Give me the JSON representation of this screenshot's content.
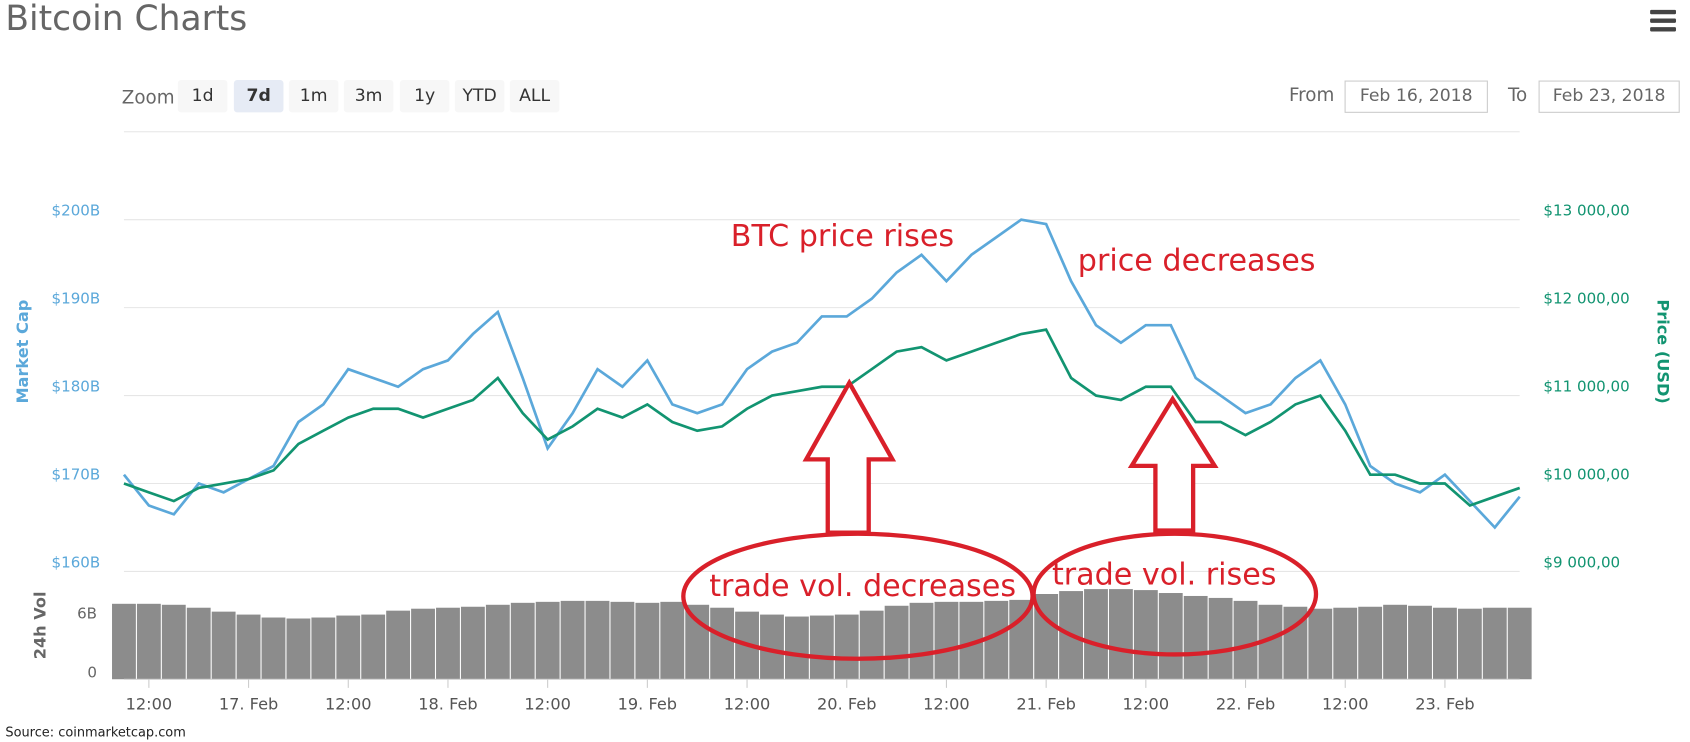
{
  "header": {
    "title": "Bitcoin Charts"
  },
  "controls": {
    "zoom_label": "Zoom",
    "zoom_options": [
      "1d",
      "7d",
      "1m",
      "3m",
      "1y",
      "YTD",
      "ALL"
    ],
    "from_label": "From",
    "from_value": "Feb 16, 2018",
    "to_label": "To",
    "to_value": "Feb 23, 2018"
  },
  "chart_data": [
    {
      "type": "line",
      "y_label": "Market Cap",
      "y2_label": "Price (USD)",
      "ylim": [
        160,
        210
      ],
      "yticks": [
        {
          "value": 160,
          "label": "$160B"
        },
        {
          "value": 170,
          "label": "$170B"
        },
        {
          "value": 180,
          "label": "$180B"
        },
        {
          "value": 190,
          "label": "$190B"
        },
        {
          "value": 200,
          "label": "$200B"
        }
      ],
      "y2lim": [
        9000,
        14000
      ],
      "y2ticks": [
        {
          "value": 9000,
          "label": "$9 000,00"
        },
        {
          "value": 10000,
          "label": "$10 000,00"
        },
        {
          "value": 11000,
          "label": "$11 000,00"
        },
        {
          "value": 12000,
          "label": "$12 000,00"
        },
        {
          "value": 13000,
          "label": "$13 000,00"
        }
      ],
      "grid": true,
      "series": [
        {
          "name": "Market Cap",
          "color": "#5ba8da",
          "values": [
            171,
            167.5,
            166.5,
            170,
            169,
            170.5,
            172,
            177,
            179,
            183,
            182,
            181,
            183,
            184,
            187,
            189.5,
            182,
            174,
            178,
            183,
            181,
            184,
            179,
            178,
            179,
            183,
            185,
            186,
            189,
            189,
            191,
            194,
            196,
            193,
            196,
            198,
            200,
            199.5,
            193,
            188,
            186,
            188,
            188,
            182,
            180,
            178,
            179,
            182,
            184,
            179,
            172,
            170,
            169,
            171,
            168,
            165,
            168.5
          ]
        },
        {
          "name": "Price (USD)",
          "color": "#129471",
          "axis": "y2",
          "values": [
            10000,
            9900,
            9800,
            9950,
            10000,
            10050,
            10150,
            10450,
            10600,
            10750,
            10850,
            10850,
            10750,
            10850,
            10950,
            11200,
            10800,
            10500,
            10650,
            10850,
            10750,
            10900,
            10700,
            10600,
            10650,
            10850,
            11000,
            11050,
            11100,
            11100,
            11300,
            11500,
            11550,
            11400,
            11500,
            11600,
            11700,
            11750,
            11200,
            11000,
            10950,
            11100,
            11100,
            10700,
            10700,
            10550,
            10700,
            10900,
            11000,
            10600,
            10100,
            10100,
            10000,
            10000,
            9750,
            9850,
            9950
          ]
        }
      ],
      "annotations": [
        "BTC price rises",
        "price decreases",
        "trade vol. decreases",
        "trade vol. rises"
      ]
    },
    {
      "type": "bar",
      "y_label": "24h Vol",
      "ylim": [
        0,
        11
      ],
      "yticks": [
        0,
        {
          "value": 6,
          "label": "6B"
        }
      ],
      "categories": [
        null,
        "12:00",
        null,
        null,
        null,
        "17. Feb",
        null,
        null,
        null,
        "12:00",
        null,
        null,
        null,
        "18. Feb",
        null,
        null,
        null,
        "12:00",
        null,
        null,
        null,
        "19. Feb",
        null,
        null,
        null,
        "12:00",
        null,
        null,
        null,
        "20. Feb",
        null,
        null,
        null,
        "12:00",
        null,
        null,
        null,
        "21. Feb",
        null,
        null,
        null,
        "12:00",
        null,
        null,
        null,
        "22. Feb",
        null,
        null,
        null,
        "12:00",
        null,
        null,
        null,
        "23. Feb",
        null,
        null,
        null
      ],
      "color": "#8c8c8c",
      "values": [
        7.7,
        7.7,
        7.6,
        7.3,
        6.9,
        6.6,
        6.3,
        6.2,
        6.3,
        6.5,
        6.6,
        7.0,
        7.2,
        7.3,
        7.4,
        7.6,
        7.8,
        7.9,
        8.0,
        8.0,
        7.9,
        7.8,
        7.9,
        7.6,
        7.3,
        6.9,
        6.6,
        6.4,
        6.5,
        6.6,
        7.0,
        7.5,
        7.8,
        7.9,
        7.9,
        8.0,
        8.1,
        8.7,
        9.0,
        9.2,
        9.2,
        9.1,
        8.8,
        8.5,
        8.3,
        8.0,
        7.6,
        7.4,
        7.2,
        7.3,
        7.4,
        7.6,
        7.5,
        7.3,
        7.2,
        7.3,
        7.3
      ]
    }
  ],
  "source": "Source: coinmarketcap.com"
}
